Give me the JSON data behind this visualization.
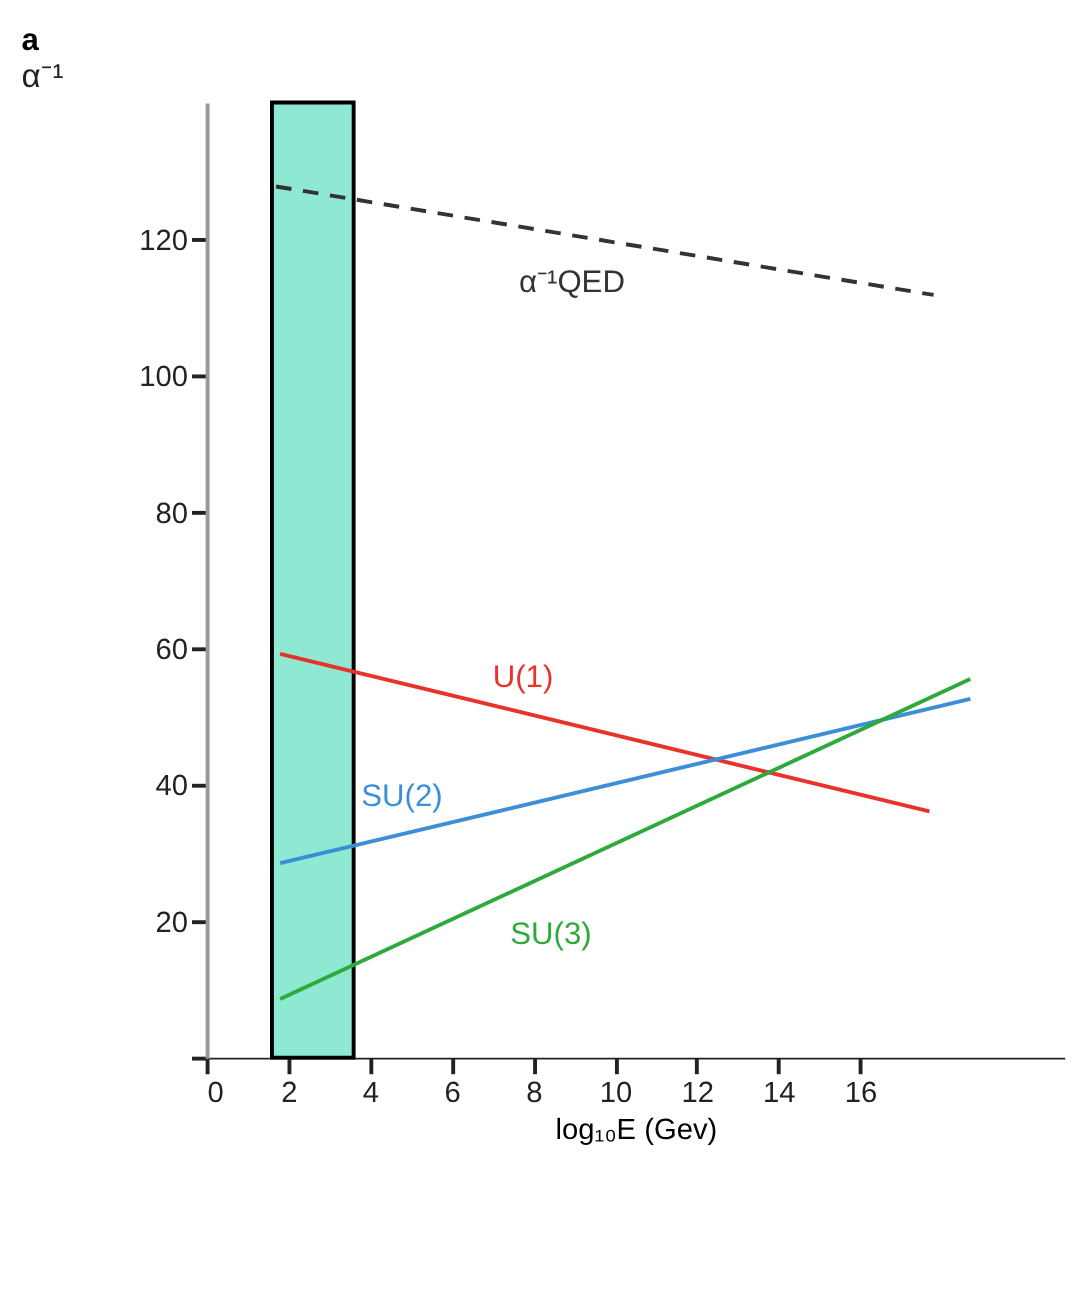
{
  "chart_data": {
    "type": "line",
    "title": "a",
    "ylabel": "α⁻¹",
    "xlabel": "log₁₀E (Gev)",
    "series": [
      {
        "name": "U(1)",
        "color": "#e8322a",
        "x": [
          1.8,
          17.7
        ],
        "values": [
          59.2,
          36.1
        ]
      },
      {
        "name": "SU(2)",
        "color": "#3a8fd6",
        "x": [
          1.8,
          18.7
        ],
        "values": [
          28.5,
          52.6
        ]
      },
      {
        "name": "SU(3)",
        "color": "#2eaa3c",
        "x": [
          1.8,
          18.7
        ],
        "values": [
          8.6,
          55.5
        ]
      },
      {
        "name": "α⁻¹QED",
        "color": "#333333",
        "x": [
          1.7,
          17.8
        ],
        "values": [
          127.7,
          111.8
        ],
        "line_style": "dashed"
      }
    ],
    "bands": [
      {
        "axis": "x",
        "from": 1.6,
        "to": 3.6,
        "color": "#8ee8d2"
      }
    ],
    "xlim": [
      0,
      21
    ],
    "xticks": [
      0,
      2,
      4,
      6,
      8,
      10,
      12,
      14,
      16
    ],
    "ylim": [
      0,
      140
    ],
    "yticks": [
      {
        "value": 0,
        "label": null
      },
      20,
      40,
      60,
      80,
      100,
      120
    ],
    "grid": false,
    "marker": "none"
  }
}
